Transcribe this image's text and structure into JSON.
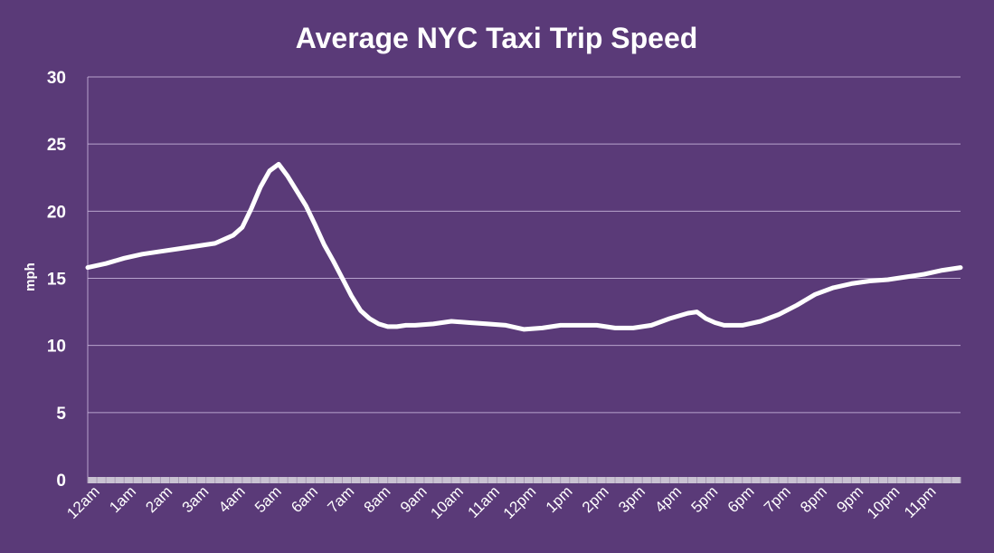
{
  "chart_data": {
    "type": "line",
    "title": "Average NYC Taxi Trip Speed",
    "xlabel": "",
    "ylabel": "mph",
    "ylim": [
      0,
      30
    ],
    "yticks": [
      0,
      5,
      10,
      15,
      20,
      25,
      30
    ],
    "grid": true,
    "legend": "none",
    "categories": [
      "12am",
      "1am",
      "2am",
      "3am",
      "4am",
      "5am",
      "6am",
      "7am",
      "8am",
      "9am",
      "10am",
      "11am",
      "12pm",
      "1pm",
      "2pm",
      "3pm",
      "4pm",
      "5pm",
      "6pm",
      "7pm",
      "8pm",
      "9pm",
      "10pm",
      "11pm"
    ],
    "series": [
      {
        "x": [
          0,
          0.5,
          1,
          1.5,
          2,
          2.5,
          3,
          3.5,
          4,
          4.25,
          4.5,
          4.75,
          5,
          5.25,
          5.5,
          5.75,
          6,
          6.25,
          6.5,
          6.75,
          7,
          7.25,
          7.5,
          7.75,
          8,
          8.25,
          8.5,
          8.75,
          9,
          9.5,
          10,
          10.5,
          11,
          11.5,
          12,
          12.5,
          13,
          13.5,
          14,
          14.5,
          15,
          15.5,
          16,
          16.5,
          16.75,
          17,
          17.25,
          17.5,
          18,
          18.5,
          19,
          19.5,
          20,
          20.5,
          21,
          21.5,
          22,
          22.5,
          23,
          23.5,
          24
        ],
        "values": [
          15.8,
          16.1,
          16.5,
          16.8,
          17.0,
          17.2,
          17.4,
          17.6,
          18.2,
          18.8,
          20.2,
          21.8,
          23.0,
          23.5,
          22.6,
          21.5,
          20.4,
          19.0,
          17.5,
          16.3,
          15.0,
          13.7,
          12.6,
          12.0,
          11.6,
          11.4,
          11.4,
          11.5,
          11.5,
          11.6,
          11.8,
          11.7,
          11.6,
          11.5,
          11.2,
          11.3,
          11.5,
          11.5,
          11.5,
          11.3,
          11.3,
          11.5,
          12.0,
          12.4,
          12.5,
          12.0,
          11.7,
          11.5,
          11.5,
          11.8,
          12.3,
          13.0,
          13.8,
          14.3,
          14.6,
          14.8,
          14.9,
          15.1,
          15.3,
          15.6,
          15.8
        ],
        "color": "#ffffff"
      }
    ],
    "colors": {
      "background": "#5a3a78",
      "grid": "#c9b6dc",
      "line": "#ffffff",
      "baseline": "#c9c2d2"
    }
  }
}
